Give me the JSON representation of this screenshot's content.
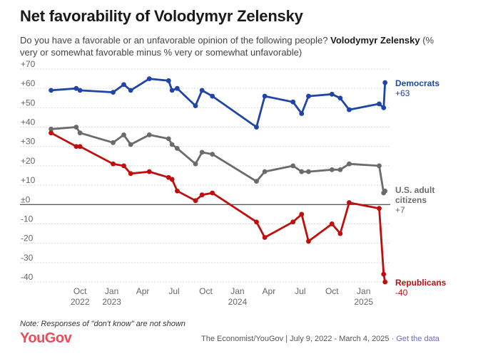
{
  "title": "Net favorability of Volodymyr Zelensky",
  "subtitle": {
    "question": "Do you have a favorable or an unfavorable opinion of the following people?",
    "subject": "Volodymyr Zelensky",
    "note": "(% very or somewhat favorable minus % very or somewhat unfavorable)"
  },
  "footer": {
    "note": "Note: Responses of \"don't know\" are not shown",
    "logo": "YouGov",
    "source": "The Economist/YouGov | July 9, 2022 - March 4, 2025 · ",
    "link": "Get the data"
  },
  "chart_data": {
    "type": "line",
    "ylim": [
      -40,
      70
    ],
    "xlim": [
      "2022-06-15",
      "2025-03-15"
    ],
    "grid": true,
    "y_ticks": [
      "+70",
      "+60",
      "+50",
      "+40",
      "+30",
      "+20",
      "+10",
      "±0",
      "-10",
      "-20",
      "-30",
      "-40"
    ],
    "x_ticks": [
      {
        "date": "2022-10-01",
        "label": "Oct",
        "year": "2022"
      },
      {
        "date": "2023-01-01",
        "label": "Jan",
        "year": "2023"
      },
      {
        "date": "2023-04-01",
        "label": "Apr",
        "year": ""
      },
      {
        "date": "2023-07-01",
        "label": "Jul",
        "year": ""
      },
      {
        "date": "2023-10-01",
        "label": "Oct",
        "year": ""
      },
      {
        "date": "2024-01-01",
        "label": "Jan",
        "year": "2024"
      },
      {
        "date": "2024-04-01",
        "label": "Apr",
        "year": ""
      },
      {
        "date": "2024-07-01",
        "label": "Jul",
        "year": ""
      },
      {
        "date": "2024-10-01",
        "label": "Oct",
        "year": ""
      },
      {
        "date": "2025-01-01",
        "label": "Jan",
        "year": "2025"
      }
    ],
    "series": [
      {
        "name": "Democrats",
        "end_label": "Democrats",
        "end_value": "+63",
        "color": "#1f45a6",
        "points": [
          [
            "2022-07-09",
            59
          ],
          [
            "2022-09-20",
            60
          ],
          [
            "2022-10-01",
            59
          ],
          [
            "2023-01-05",
            58
          ],
          [
            "2023-02-05",
            62
          ],
          [
            "2023-02-25",
            59
          ],
          [
            "2023-04-20",
            65
          ],
          [
            "2023-06-15",
            64
          ],
          [
            "2023-06-25",
            59
          ],
          [
            "2023-07-10",
            60
          ],
          [
            "2023-09-01",
            51
          ],
          [
            "2023-09-20",
            59
          ],
          [
            "2023-10-20",
            56
          ],
          [
            "2024-02-25",
            40
          ],
          [
            "2024-03-20",
            56
          ],
          [
            "2024-06-10",
            53
          ],
          [
            "2024-07-05",
            47
          ],
          [
            "2024-07-25",
            56
          ],
          [
            "2024-10-01",
            57
          ],
          [
            "2024-10-25",
            55
          ],
          [
            "2024-11-20",
            49
          ],
          [
            "2025-02-15",
            52
          ],
          [
            "2025-02-28",
            50
          ],
          [
            "2025-03-04",
            63
          ]
        ]
      },
      {
        "name": "U.S. adult citizens",
        "end_label": "U.S. adult citizens",
        "end_value": "+7",
        "color": "#6b6b6b",
        "points": [
          [
            "2022-07-09",
            39
          ],
          [
            "2022-09-20",
            40
          ],
          [
            "2022-10-01",
            37
          ],
          [
            "2023-01-05",
            32
          ],
          [
            "2023-02-05",
            36
          ],
          [
            "2023-02-25",
            31
          ],
          [
            "2023-04-20",
            36
          ],
          [
            "2023-06-15",
            34
          ],
          [
            "2023-06-25",
            31
          ],
          [
            "2023-07-10",
            29
          ],
          [
            "2023-09-01",
            21
          ],
          [
            "2023-09-20",
            27
          ],
          [
            "2023-10-20",
            26
          ],
          [
            "2024-02-25",
            12
          ],
          [
            "2024-03-20",
            17
          ],
          [
            "2024-06-10",
            20
          ],
          [
            "2024-07-05",
            17
          ],
          [
            "2024-07-25",
            17
          ],
          [
            "2024-10-01",
            18
          ],
          [
            "2024-10-25",
            18
          ],
          [
            "2024-11-20",
            21
          ],
          [
            "2025-02-15",
            20
          ],
          [
            "2025-02-28",
            6
          ],
          [
            "2025-03-04",
            7
          ]
        ]
      },
      {
        "name": "Republicans",
        "end_label": "Republicans",
        "end_value": "-40",
        "color": "#c00e0e",
        "points": [
          [
            "2022-07-09",
            37
          ],
          [
            "2022-09-20",
            30
          ],
          [
            "2022-10-01",
            30
          ],
          [
            "2023-01-05",
            21
          ],
          [
            "2023-02-05",
            20
          ],
          [
            "2023-02-25",
            16
          ],
          [
            "2023-04-20",
            17
          ],
          [
            "2023-06-15",
            14
          ],
          [
            "2023-06-25",
            13
          ],
          [
            "2023-07-10",
            7
          ],
          [
            "2023-09-01",
            2
          ],
          [
            "2023-09-20",
            5
          ],
          [
            "2023-10-20",
            6
          ],
          [
            "2024-02-25",
            -9
          ],
          [
            "2024-03-20",
            -17
          ],
          [
            "2024-06-10",
            -9
          ],
          [
            "2024-07-05",
            -5
          ],
          [
            "2024-07-25",
            -19
          ],
          [
            "2024-10-01",
            -10
          ],
          [
            "2024-10-25",
            -15
          ],
          [
            "2024-11-20",
            1
          ],
          [
            "2025-02-15",
            -2
          ],
          [
            "2025-02-28",
            -36
          ],
          [
            "2025-03-04",
            -40
          ]
        ]
      }
    ]
  }
}
